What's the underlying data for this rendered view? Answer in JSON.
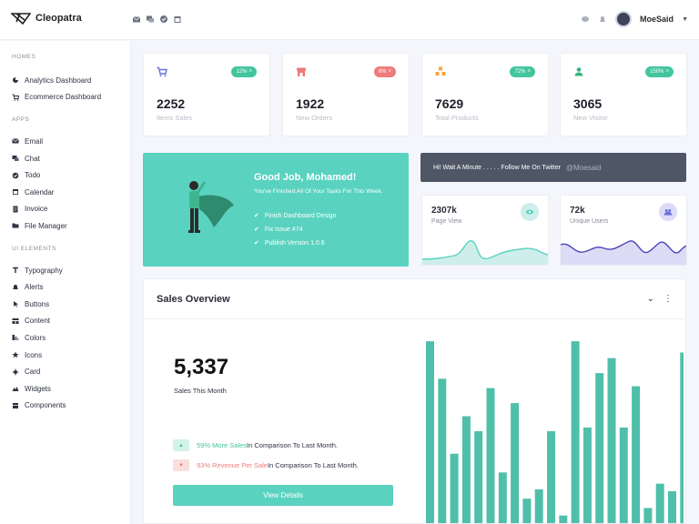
{
  "app": {
    "name": "Cleopatra"
  },
  "header": {
    "tools": [
      "mail-icon",
      "chat-icon",
      "check-icon",
      "calendar-icon"
    ],
    "user_name": "MoeSaid"
  },
  "sidebar": {
    "sections": [
      {
        "title": "Homes",
        "items": [
          {
            "label": "Analytics Dashboard",
            "icon": "chart-icon"
          },
          {
            "label": "Ecommerce Dashboard",
            "icon": "cart-icon"
          }
        ]
      },
      {
        "title": "Apps",
        "items": [
          {
            "label": "Email",
            "icon": "envelope-icon"
          },
          {
            "label": "Chat",
            "icon": "chat-icon"
          },
          {
            "label": "Todo",
            "icon": "check-circle-icon"
          },
          {
            "label": "Calendar",
            "icon": "calendar-icon"
          },
          {
            "label": "Invoice",
            "icon": "document-icon"
          },
          {
            "label": "File Manager",
            "icon": "folder-icon"
          }
        ]
      },
      {
        "title": "UI Elements",
        "items": [
          {
            "label": "Typography",
            "icon": "text-icon"
          },
          {
            "label": "Alerts",
            "icon": "bell-icon"
          },
          {
            "label": "Buttons",
            "icon": "pointer-icon"
          },
          {
            "label": "Content",
            "icon": "layout-icon"
          },
          {
            "label": "Colors",
            "icon": "palette-icon"
          },
          {
            "label": "Icons",
            "icon": "star-icon"
          },
          {
            "label": "Card",
            "icon": "card-icon"
          },
          {
            "label": "Widgets",
            "icon": "widget-icon"
          },
          {
            "label": "Components",
            "icon": "component-icon"
          }
        ]
      }
    ]
  },
  "stats": [
    {
      "value": "2252",
      "label": "Items Sales",
      "badge": "12%",
      "trend": "up",
      "icon": "cart-icon",
      "icon_color": "#6c6fdb"
    },
    {
      "value": "1922",
      "label": "New Orders",
      "badge": "6%",
      "trend": "down",
      "icon": "store-icon",
      "icon_color": "#f07b7b"
    },
    {
      "value": "7629",
      "label": "Total Products",
      "badge": "72%",
      "trend": "up",
      "icon": "boxes-icon",
      "icon_color": "#f2a93b"
    },
    {
      "value": "3065",
      "label": "New Visitor",
      "badge": "150%",
      "trend": "up",
      "icon": "users-icon",
      "icon_color": "#36b37e"
    }
  ],
  "congrats": {
    "title": "Good Job, Mohamed!",
    "subtitle": "You've Finished All Of Your Tasks For This Week.",
    "tasks": [
      "Finish Dashboard Design",
      "Fix Issue #74",
      "Publish Version 1.0.6"
    ]
  },
  "banner": {
    "text": "Hi! Wait A Minute . . . . . Follow Me On Twitter",
    "handle": "@Moesaid"
  },
  "mini_cards": [
    {
      "value": "2307k",
      "label": "Page View",
      "icon": "eye-icon",
      "color": "#5ad2c0"
    },
    {
      "value": "72k",
      "label": "Unique Users",
      "icon": "users-icon",
      "color": "#6c6fdb"
    }
  ],
  "sales": {
    "title": "Sales Overview",
    "value": "5,337",
    "value_label": "Sales This Month",
    "comparisons": [
      {
        "highlight": "59% More Sales",
        "rest": " In Comparison To Last Month.",
        "trend": "up"
      },
      {
        "highlight": "93% Revenue Per Sale",
        "rest": " In Comparison To Last Month.",
        "trend": "down"
      }
    ],
    "button": "View Details"
  },
  "colors": {
    "accent": "#5ad2c0",
    "up": "#43c59e",
    "down": "#f07b7b",
    "bar": "#4fbfaa"
  },
  "chart_data": {
    "type": "bar",
    "values": [
      98,
      78,
      38,
      58,
      50,
      73,
      28,
      65,
      14,
      19,
      50,
      5,
      98,
      52,
      81,
      89,
      52,
      74,
      9,
      22,
      18,
      92
    ]
  }
}
